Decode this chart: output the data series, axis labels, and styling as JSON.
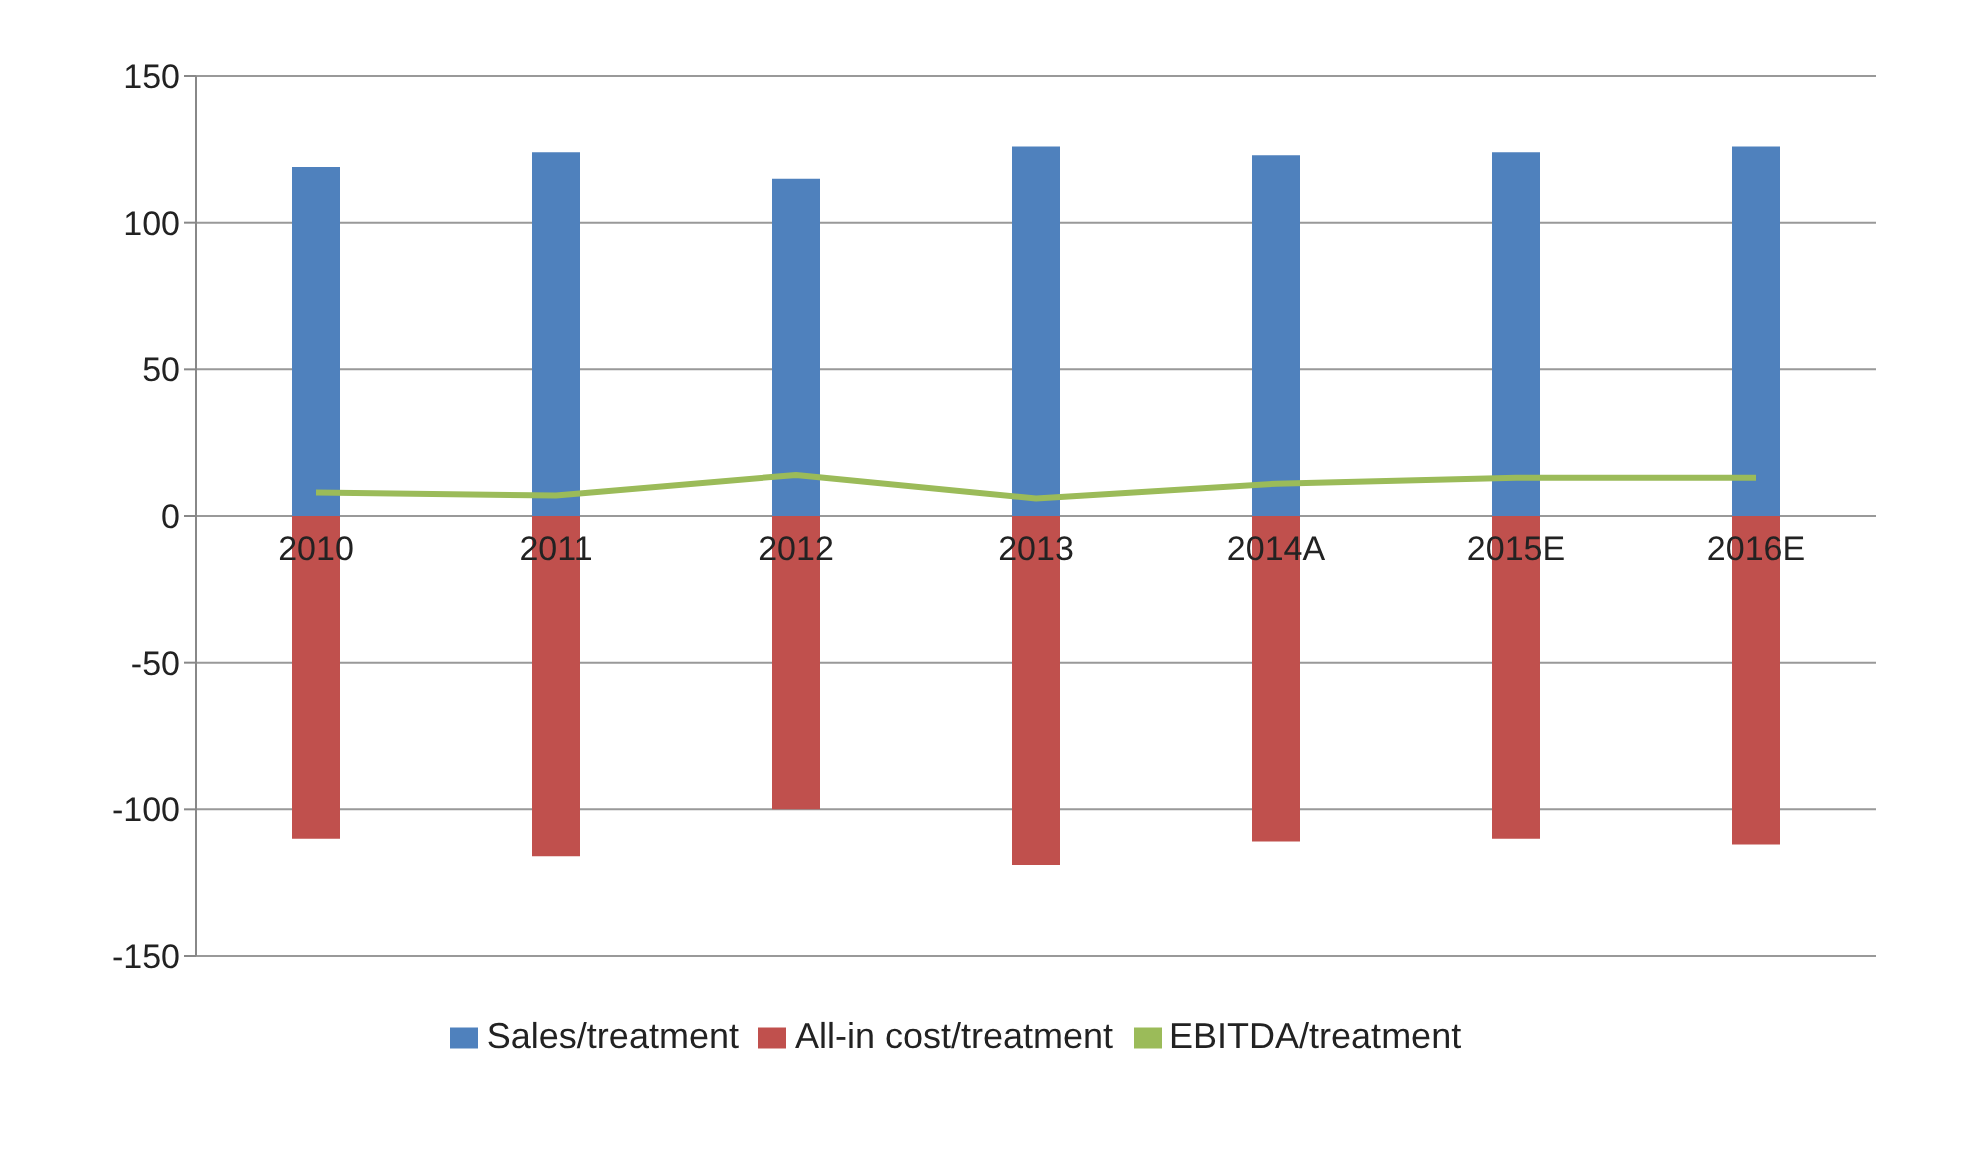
{
  "chart_data": {
    "type": "bar",
    "stacked": true,
    "categories": [
      "2010",
      "2011",
      "2012",
      "2013",
      "2014A",
      "2015E",
      "2016E"
    ],
    "series": [
      {
        "name": "Sales/treatment",
        "color": "#4f81bd",
        "values": [
          119,
          124,
          115,
          126,
          123,
          124,
          126
        ]
      },
      {
        "name": "All-in cost/treatment",
        "color": "#c0504d",
        "values": [
          -110,
          -116,
          -100,
          -119,
          -111,
          -110,
          -112
        ]
      },
      {
        "name": "EBITDA/treatment",
        "color": "#9bbb59",
        "type": "line",
        "values": [
          8,
          7,
          14,
          6,
          11,
          13,
          13
        ]
      }
    ],
    "ylim": [
      -150,
      150
    ],
    "yticks": [
      -150,
      -100,
      -50,
      0,
      50,
      100,
      150
    ],
    "grid": "y",
    "legend": "bottom",
    "marker": "none"
  }
}
